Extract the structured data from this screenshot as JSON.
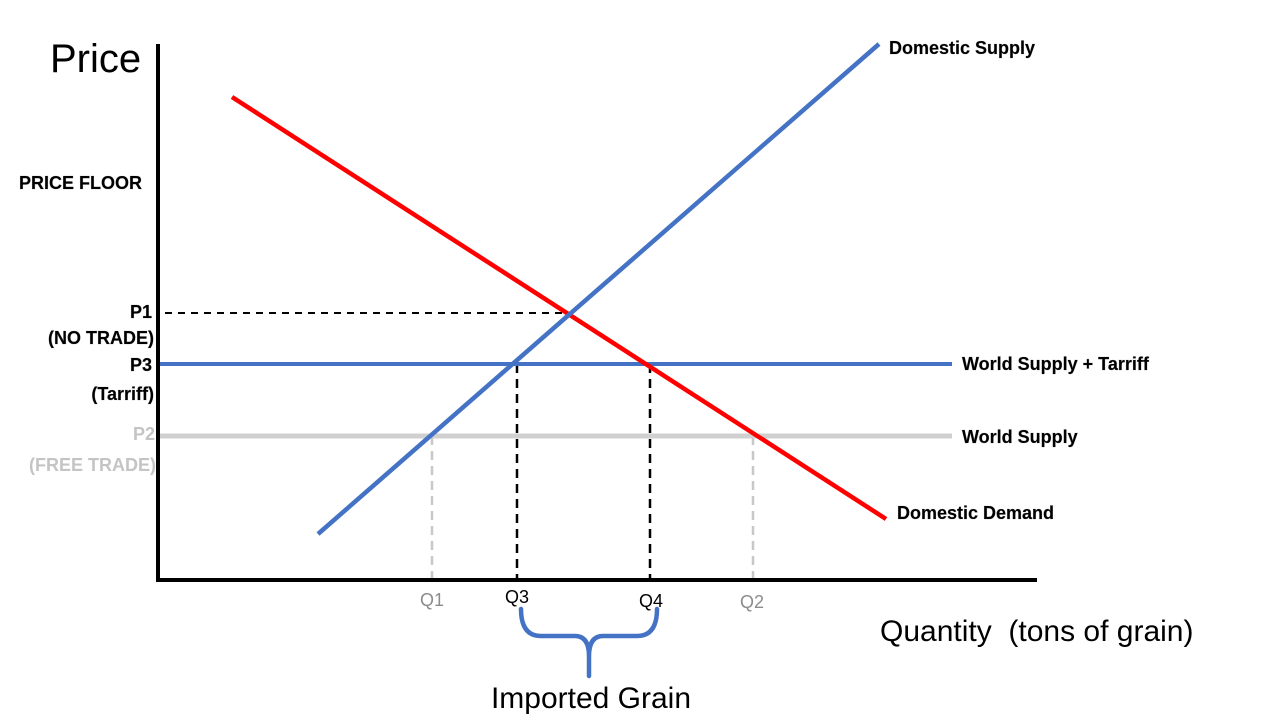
{
  "axes": {
    "y_title": "Price",
    "x_title": "Quantity  (tons of grain)"
  },
  "price_labels": {
    "price_floor": "PRICE FLOOR",
    "p1_line1": "P1",
    "p1_line2": "(NO TRADE)",
    "p3_line1": "P3",
    "p3_line2": "(Tarriff)",
    "p2_line1": "P2",
    "p2_line2": "(FREE TRADE)"
  },
  "quantity_labels": {
    "q1": "Q1",
    "q2": "Q2",
    "q3": "Q3",
    "q4": "Q4"
  },
  "curve_labels": {
    "domestic_supply": "Domestic Supply",
    "world_supply_tariff": "World Supply + Tarriff",
    "world_supply": "World Supply",
    "domestic_demand": "Domestic Demand"
  },
  "annotation": {
    "imported": "Imported Grain"
  },
  "colors": {
    "supply": "#4472c4",
    "demand": "#ff0000",
    "world_supply": "#d0d0d0",
    "axis": "#000000",
    "grey_text": "#c4c4c4"
  }
}
